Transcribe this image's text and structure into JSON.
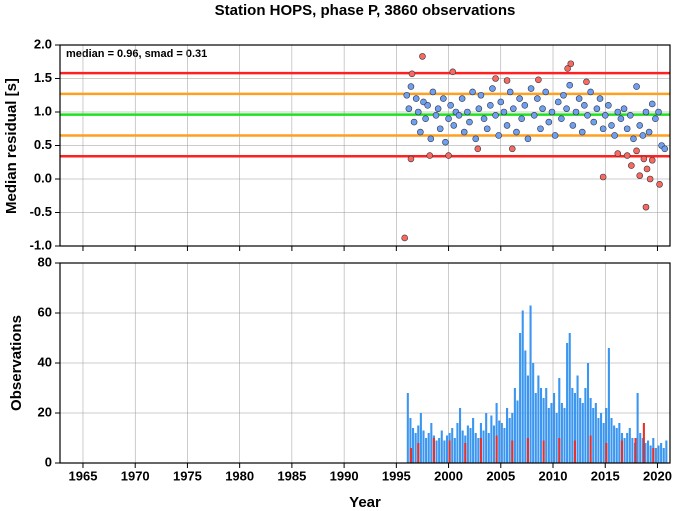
{
  "chart_data": [
    {
      "type": "scatter",
      "title": "Station HOPS, phase P, 3860 observations",
      "ylabel": "Median residual [s]",
      "annotation": "median = 0.96, smad = 0.31",
      "xlim": [
        1962.8,
        2021.2
      ],
      "xticks": [
        1965,
        1970,
        1975,
        1980,
        1985,
        1990,
        1995,
        2000,
        2005,
        2010,
        2015,
        2020
      ],
      "ylim": [
        -1,
        2
      ],
      "yticks": [
        {
          "value": -1,
          "label": "-1.0"
        },
        {
          "value": -0.5,
          "label": "-0.5"
        },
        {
          "value": 0,
          "label": "0.0"
        },
        {
          "value": 0.5,
          "label": "0.5"
        },
        {
          "value": 1,
          "label": "1.0"
        },
        {
          "value": 1.5,
          "label": "1.5"
        },
        {
          "value": 2,
          "label": "2.0"
        }
      ],
      "grid": true,
      "hlines": [
        {
          "value": 1.58,
          "color": "#ff2020"
        },
        {
          "value": 1.27,
          "color": "#ffa020"
        },
        {
          "value": 0.96,
          "color": "#20e020"
        },
        {
          "value": 0.65,
          "color": "#ffa020"
        },
        {
          "value": 0.34,
          "color": "#ff2020"
        }
      ],
      "series": [
        {
          "color": "#6fa0f0",
          "x": [
            1996.0,
            1996.2,
            1996.4,
            1996.7,
            1996.9,
            1997.1,
            1997.3,
            1997.6,
            1997.8,
            1998.0,
            1998.3,
            1998.5,
            1998.8,
            1999.0,
            1999.2,
            1999.5,
            1999.7,
            2000.0,
            2000.2,
            2000.5,
            2000.7,
            2001.0,
            2001.3,
            2001.5,
            2001.8,
            2002.0,
            2002.3,
            2002.6,
            2002.9,
            2003.1,
            2003.4,
            2003.7,
            2004.0,
            2004.2,
            2004.5,
            2004.8,
            2005.0,
            2005.3,
            2005.6,
            2005.9,
            2006.2,
            2006.5,
            2006.8,
            2007.0,
            2007.3,
            2007.6,
            2007.9,
            2008.2,
            2008.5,
            2008.8,
            2009.0,
            2009.3,
            2009.6,
            2009.9,
            2010.2,
            2010.5,
            2010.8,
            2011.0,
            2011.3,
            2011.6,
            2011.9,
            2012.2,
            2012.5,
            2012.8,
            2013.0,
            2013.3,
            2013.6,
            2013.9,
            2014.2,
            2014.5,
            2014.8,
            2015.0,
            2015.3,
            2015.6,
            2015.9,
            2016.2,
            2016.5,
            2016.8,
            2017.1,
            2017.4,
            2017.7,
            2018.0,
            2018.3,
            2018.6,
            2018.9,
            2019.2,
            2019.5,
            2019.8,
            2020.1,
            2020.4,
            2020.7
          ],
          "values": [
            1.25,
            1.05,
            1.38,
            0.85,
            1.2,
            1.0,
            0.7,
            1.15,
            0.9,
            1.1,
            0.6,
            1.3,
            0.95,
            1.05,
            0.75,
            1.2,
            0.55,
            0.9,
            1.1,
            0.8,
            1.0,
            0.95,
            1.2,
            0.7,
            1.0,
            0.85,
            1.3,
            0.6,
            1.05,
            1.25,
            0.9,
            0.75,
            1.1,
            1.35,
            0.95,
            0.65,
            1.15,
            1.0,
            0.8,
            1.3,
            1.05,
            0.7,
            1.2,
            0.9,
            1.1,
            0.6,
            1.35,
            0.95,
            1.2,
            0.75,
            1.05,
            1.3,
            0.85,
            1.0,
            0.65,
            1.15,
            0.9,
            1.25,
            1.05,
            1.4,
            0.8,
            1.0,
            1.2,
            0.7,
            1.1,
            0.95,
            1.3,
            0.85,
            1.05,
            1.2,
            0.75,
            0.95,
            1.1,
            0.8,
            0.65,
            1.0,
            0.9,
            1.05,
            0.75,
            0.95,
            0.6,
            1.38,
            0.8,
            0.65,
            1.0,
            0.7,
            1.12,
            0.9,
            1.0,
            0.5,
            0.45
          ]
        },
        {
          "color": "#f86a5e",
          "x": [
            1995.8,
            1996.4,
            1996.5,
            1997.5,
            1998.2,
            2000.0,
            2000.4,
            2002.8,
            2004.5,
            2005.6,
            2006.1,
            2008.6,
            2011.4,
            2011.7,
            2013.2,
            2014.8,
            2016.2,
            2017.1,
            2017.5,
            2018.0,
            2018.3,
            2018.7,
            2018.9,
            2019.0,
            2019.3,
            2019.5,
            2020.2
          ],
          "values": [
            -0.88,
            0.3,
            1.57,
            1.83,
            0.35,
            0.35,
            1.6,
            0.45,
            1.5,
            1.47,
            0.45,
            1.48,
            1.65,
            1.72,
            1.45,
            0.03,
            0.38,
            0.35,
            0.2,
            0.42,
            0.05,
            0.3,
            -0.42,
            0.15,
            0.0,
            0.28,
            -0.08
          ]
        }
      ]
    },
    {
      "type": "bar",
      "xlabel": "Year",
      "ylabel": "Observations",
      "xlim": [
        1962.8,
        2021.2
      ],
      "xticks": [
        1965,
        1970,
        1975,
        1980,
        1985,
        1990,
        1995,
        2000,
        2005,
        2010,
        2015,
        2020
      ],
      "ylim": [
        0,
        80
      ],
      "yticks": [
        0,
        20,
        40,
        60,
        80
      ],
      "grid": true,
      "bar_width": 0.2,
      "series": [
        {
          "color": "#3a96f0",
          "x": [
            1996.0,
            1996.25,
            1996.5,
            1996.75,
            1997.0,
            1997.25,
            1997.5,
            1997.75,
            1998.0,
            1998.25,
            1998.5,
            1998.75,
            1999.0,
            1999.25,
            1999.5,
            1999.75,
            2000.0,
            2000.25,
            2000.5,
            2000.75,
            2001.0,
            2001.25,
            2001.5,
            2001.75,
            2002.0,
            2002.25,
            2002.5,
            2002.75,
            2003.0,
            2003.25,
            2003.5,
            2003.75,
            2004.0,
            2004.25,
            2004.5,
            2004.75,
            2005.0,
            2005.25,
            2005.5,
            2005.75,
            2006.0,
            2006.25,
            2006.5,
            2006.75,
            2007.0,
            2007.25,
            2007.5,
            2007.75,
            2008.0,
            2008.25,
            2008.5,
            2008.75,
            2009.0,
            2009.25,
            2009.5,
            2009.75,
            2010.0,
            2010.25,
            2010.5,
            2010.75,
            2011.0,
            2011.25,
            2011.5,
            2011.75,
            2012.0,
            2012.25,
            2012.5,
            2012.75,
            2013.0,
            2013.25,
            2013.5,
            2013.75,
            2014.0,
            2014.25,
            2014.5,
            2014.75,
            2015.0,
            2015.25,
            2015.5,
            2015.75,
            2016.0,
            2016.25,
            2016.5,
            2016.75,
            2017.0,
            2017.25,
            2017.5,
            2017.75,
            2018.0,
            2018.25,
            2018.5,
            2018.75,
            2019.0,
            2019.25,
            2019.5,
            2019.75,
            2020.0,
            2020.25,
            2020.5,
            2020.75
          ],
          "values": [
            28,
            18,
            14,
            12,
            15,
            20,
            13,
            10,
            12,
            16,
            11,
            9,
            10,
            13,
            9,
            11,
            12,
            14,
            10,
            16,
            22,
            13,
            11,
            15,
            14,
            18,
            12,
            10,
            16,
            13,
            20,
            12,
            19,
            15,
            24,
            17,
            16,
            14,
            22,
            18,
            20,
            30,
            25,
            52,
            61,
            45,
            35,
            63,
            40,
            28,
            35,
            30,
            26,
            30,
            22,
            24,
            28,
            20,
            34,
            24,
            22,
            48,
            52,
            30,
            28,
            35,
            26,
            24,
            30,
            40,
            26,
            22,
            24,
            18,
            20,
            16,
            22,
            46,
            18,
            15,
            14,
            16,
            12,
            10,
            12,
            14,
            10,
            8,
            28,
            12,
            10,
            8,
            9,
            7,
            10,
            6,
            7,
            8,
            6,
            9
          ]
        },
        {
          "color": "#e8302a",
          "x": [
            1996.3,
            1997.0,
            1998.5,
            2000.0,
            2001.5,
            2003.0,
            2004.5,
            2006.0,
            2007.5,
            2009.0,
            2010.5,
            2012.0,
            2013.5,
            2015.0,
            2016.5,
            2017.8,
            2018.6,
            2019.5
          ],
          "values": [
            6,
            8,
            10,
            9,
            8,
            10,
            11,
            9,
            10,
            9,
            10,
            9,
            11,
            8,
            9,
            10,
            16,
            6
          ]
        }
      ]
    }
  ]
}
